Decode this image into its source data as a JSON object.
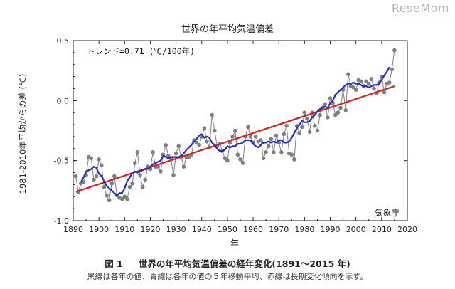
{
  "watermark": "ReseMom",
  "caption": {
    "figure_number": "図 1",
    "figure_title": "世界の年平均気温偏差の経年変化(1891～2015 年)",
    "note": "黒線は各年の値、青線は各年の値の５年移動平均、赤線は長期変化傾向を示す。"
  },
  "chart_data": {
    "type": "line",
    "title": "世界の年平均気温偏差",
    "xlabel": "年",
    "ylabel": "1981-2010年平均からの差 (℃)",
    "xlim": [
      1890,
      2020
    ],
    "ylim": [
      -1.0,
      0.5
    ],
    "xticks": [
      1890,
      1900,
      1910,
      1920,
      1930,
      1940,
      1950,
      1960,
      1970,
      1980,
      1990,
      2000,
      2010,
      2020
    ],
    "yticks": [
      0.5,
      0.0,
      -0.5,
      -1.0
    ],
    "ytick_labels": [
      "0.5",
      "0.0",
      "-0.5",
      "-1.0"
    ],
    "annotation": "トレンド=0.71 (℃/100年)",
    "source": "気象庁",
    "colors": {
      "annual": "#7f7f7f",
      "moving_average": "#1f2fb8",
      "trend": "#d62020"
    },
    "series": [
      {
        "name": "各年の値",
        "style": "gray-line-with-dots",
        "x": [
          1891,
          1892,
          1893,
          1894,
          1895,
          1896,
          1897,
          1898,
          1899,
          1900,
          1901,
          1902,
          1903,
          1904,
          1905,
          1906,
          1907,
          1908,
          1909,
          1910,
          1911,
          1912,
          1913,
          1914,
          1915,
          1916,
          1917,
          1918,
          1919,
          1920,
          1921,
          1922,
          1923,
          1924,
          1925,
          1926,
          1927,
          1928,
          1929,
          1930,
          1931,
          1932,
          1933,
          1934,
          1935,
          1936,
          1937,
          1938,
          1939,
          1940,
          1941,
          1942,
          1943,
          1944,
          1945,
          1946,
          1947,
          1948,
          1949,
          1950,
          1951,
          1952,
          1953,
          1954,
          1955,
          1956,
          1957,
          1958,
          1959,
          1960,
          1961,
          1962,
          1963,
          1964,
          1965,
          1966,
          1967,
          1968,
          1969,
          1970,
          1971,
          1972,
          1973,
          1974,
          1975,
          1976,
          1977,
          1978,
          1979,
          1980,
          1981,
          1982,
          1983,
          1984,
          1985,
          1986,
          1987,
          1988,
          1989,
          1990,
          1991,
          1992,
          1993,
          1994,
          1995,
          1996,
          1997,
          1998,
          1999,
          2000,
          2001,
          2002,
          2003,
          2004,
          2005,
          2006,
          2007,
          2008,
          2009,
          2010,
          2011,
          2012,
          2013,
          2014,
          2015
        ],
        "values": [
          -0.63,
          -0.76,
          -0.69,
          -0.68,
          -0.62,
          -0.47,
          -0.48,
          -0.66,
          -0.63,
          -0.49,
          -0.54,
          -0.72,
          -0.79,
          -0.83,
          -0.69,
          -0.63,
          -0.79,
          -0.81,
          -0.82,
          -0.8,
          -0.82,
          -0.72,
          -0.69,
          -0.52,
          -0.43,
          -0.62,
          -0.72,
          -0.66,
          -0.55,
          -0.57,
          -0.43,
          -0.55,
          -0.55,
          -0.59,
          -0.45,
          -0.37,
          -0.46,
          -0.48,
          -0.62,
          -0.44,
          -0.38,
          -0.47,
          -0.55,
          -0.47,
          -0.47,
          -0.45,
          -0.33,
          -0.35,
          -0.37,
          -0.3,
          -0.23,
          -0.34,
          -0.39,
          -0.12,
          -0.25,
          -0.38,
          -0.36,
          -0.42,
          -0.48,
          -0.5,
          -0.35,
          -0.3,
          -0.25,
          -0.45,
          -0.49,
          -0.52,
          -0.3,
          -0.22,
          -0.3,
          -0.35,
          -0.3,
          -0.34,
          -0.33,
          -0.48,
          -0.43,
          -0.38,
          -0.32,
          -0.43,
          -0.29,
          -0.35,
          -0.43,
          -0.28,
          -0.21,
          -0.44,
          -0.45,
          -0.49,
          -0.21,
          -0.27,
          -0.22,
          -0.1,
          -0.15,
          -0.26,
          -0.1,
          -0.21,
          -0.25,
          -0.12,
          -0.06,
          -0.03,
          -0.14,
          0.02,
          -0.02,
          -0.12,
          -0.1,
          -0.06,
          0.09,
          -0.08,
          0.22,
          0.12,
          0.11,
          0.09,
          0.17,
          0.16,
          0.12,
          0.16,
          0.14,
          0.18,
          0.1,
          0.06,
          0.15,
          0.2,
          0.07,
          0.14,
          0.15,
          0.26,
          0.42
        ]
      },
      {
        "name": "5年移動平均",
        "style": "blue-line",
        "x": [
          1893,
          1894,
          1895,
          1896,
          1897,
          1898,
          1899,
          1900,
          1901,
          1902,
          1903,
          1904,
          1905,
          1906,
          1907,
          1908,
          1909,
          1910,
          1911,
          1912,
          1913,
          1914,
          1915,
          1916,
          1917,
          1918,
          1919,
          1920,
          1921,
          1922,
          1923,
          1924,
          1925,
          1926,
          1927,
          1928,
          1929,
          1930,
          1931,
          1932,
          1933,
          1934,
          1935,
          1936,
          1937,
          1938,
          1939,
          1940,
          1941,
          1942,
          1943,
          1944,
          1945,
          1946,
          1947,
          1948,
          1949,
          1950,
          1951,
          1952,
          1953,
          1954,
          1955,
          1956,
          1957,
          1958,
          1959,
          1960,
          1961,
          1962,
          1963,
          1964,
          1965,
          1966,
          1967,
          1968,
          1969,
          1970,
          1971,
          1972,
          1973,
          1974,
          1975,
          1976,
          1977,
          1978,
          1979,
          1980,
          1981,
          1982,
          1983,
          1984,
          1985,
          1986,
          1987,
          1988,
          1989,
          1990,
          1991,
          1992,
          1993,
          1994,
          1995,
          1996,
          1997,
          1998,
          1999,
          2000,
          2001,
          2002,
          2003,
          2004,
          2005,
          2006,
          2007,
          2008,
          2009,
          2010,
          2011,
          2012,
          2013
        ],
        "values": [
          -0.68,
          -0.64,
          -0.59,
          -0.58,
          -0.57,
          -0.55,
          -0.56,
          -0.61,
          -0.63,
          -0.67,
          -0.71,
          -0.73,
          -0.75,
          -0.77,
          -0.79,
          -0.77,
          -0.77,
          -0.73,
          -0.67,
          -0.64,
          -0.6,
          -0.59,
          -0.6,
          -0.59,
          -0.58,
          -0.57,
          -0.57,
          -0.55,
          -0.53,
          -0.52,
          -0.51,
          -0.5,
          -0.46,
          -0.47,
          -0.48,
          -0.47,
          -0.47,
          -0.47,
          -0.47,
          -0.46,
          -0.44,
          -0.41,
          -0.39,
          -0.37,
          -0.34,
          -0.32,
          -0.29,
          -0.28,
          -0.31,
          -0.3,
          -0.31,
          -0.35,
          -0.37,
          -0.4,
          -0.42,
          -0.42,
          -0.41,
          -0.38,
          -0.39,
          -0.38,
          -0.38,
          -0.36,
          -0.36,
          -0.35,
          -0.33,
          -0.33,
          -0.33,
          -0.36,
          -0.38,
          -0.39,
          -0.37,
          -0.35,
          -0.35,
          -0.34,
          -0.35,
          -0.34,
          -0.35,
          -0.33,
          -0.33,
          -0.35,
          -0.35,
          -0.34,
          -0.31,
          -0.27,
          -0.23,
          -0.2,
          -0.17,
          -0.18,
          -0.18,
          -0.17,
          -0.14,
          -0.12,
          -0.09,
          -0.07,
          -0.06,
          -0.05,
          -0.06,
          -0.02,
          0.0,
          0.05,
          0.07,
          0.09,
          0.11,
          0.13,
          0.14,
          0.14,
          0.15,
          0.14,
          0.14,
          0.13,
          0.12,
          0.12,
          0.11,
          0.12,
          0.13,
          0.13,
          0.14,
          0.17,
          0.21,
          0.24,
          0.28
        ]
      },
      {
        "name": "長期変化傾向",
        "style": "red-line",
        "x": [
          1891,
          2015
        ],
        "values": [
          -0.76,
          0.12
        ]
      }
    ]
  }
}
